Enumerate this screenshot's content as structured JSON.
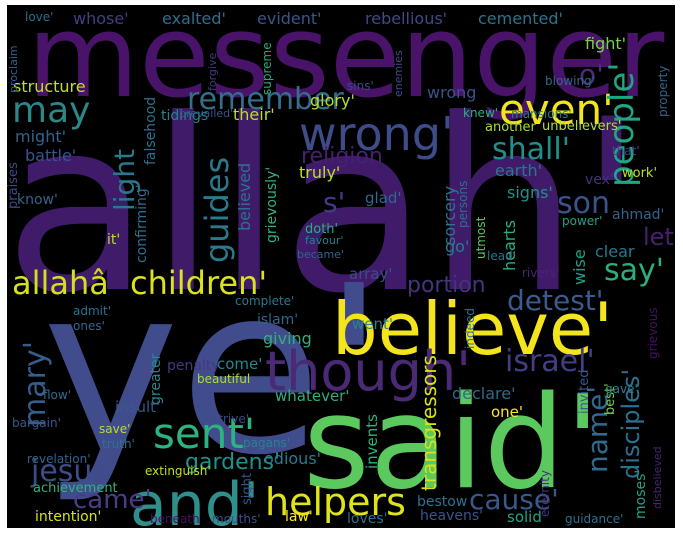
{
  "words": [
    {
      "text": "allah'",
      "color": "#3f1b6a"
    },
    {
      "text": "ye'",
      "color": "#404c8c"
    },
    {
      "text": "messenger'",
      "color": "#49136a"
    },
    {
      "text": "said'",
      "color": "#5cc95f"
    },
    {
      "text": "believe'",
      "color": "#f3e41e"
    },
    {
      "text": "and'",
      "color": "#2f8f8b"
    },
    {
      "text": "though'",
      "color": "#4a2a74"
    },
    {
      "text": "wrong'",
      "color": "#3e4c8a"
    },
    {
      "text": "even'",
      "color": "#f0e51e"
    },
    {
      "text": "sent'",
      "color": "#2db281"
    },
    {
      "text": "helpers",
      "color": "#dfe41a"
    },
    {
      "text": "children'",
      "color": "#dbe21e"
    },
    {
      "text": "allahâ",
      "color": "#d5e01d"
    },
    {
      "text": "may",
      "color": "#2c8789"
    },
    {
      "text": "remember",
      "color": "#356e8b"
    },
    {
      "text": "people'",
      "color": "#21a685"
    },
    {
      "text": "guides",
      "color": "#2b7a8c"
    },
    {
      "text": "israel'",
      "color": "#433d84"
    },
    {
      "text": "detest'",
      "color": "#3a5b8b"
    },
    {
      "text": "mary'",
      "color": "#365d8d"
    },
    {
      "text": "jesus",
      "color": "#3e4c8a"
    },
    {
      "text": "cause'",
      "color": "#38598c"
    },
    {
      "text": "name'",
      "color": "#31688e"
    },
    {
      "text": "disciples'",
      "color": "#2e6f8e"
    },
    {
      "text": "son",
      "color": "#3b528b"
    },
    {
      "text": "shall'",
      "color": "#21908d"
    },
    {
      "text": "came'",
      "color": "#4a3c86"
    },
    {
      "text": "say'",
      "color": "#2ab07f"
    },
    {
      "text": "light",
      "color": "#2a788e"
    },
    {
      "text": "religion",
      "color": "#482071"
    },
    {
      "text": "portion",
      "color": "#46337e"
    },
    {
      "text": "gardens'",
      "color": "#21918c"
    },
    {
      "text": "o'",
      "color": "#4a2e7a"
    },
    {
      "text": "let'",
      "color": "#4b1f6f"
    },
    {
      "text": "s'",
      "color": "#443983"
    },
    {
      "text": "transgressors",
      "color": "#d7e219"
    },
    {
      "text": "believed",
      "color": "#2c728e"
    },
    {
      "text": "fight'",
      "color": "#7ad151"
    },
    {
      "text": "exalted'",
      "color": "#2e6e8e"
    },
    {
      "text": "evident'",
      "color": "#3a548c"
    },
    {
      "text": "rebellious'",
      "color": "#3e4a89"
    },
    {
      "text": "cemented'",
      "color": "#2c738e"
    },
    {
      "text": "whose'",
      "color": "#433e85"
    },
    {
      "text": "love'",
      "color": "#2e6e8e"
    },
    {
      "text": "structure",
      "color": "#c2df23"
    },
    {
      "text": "might'",
      "color": "#33638d"
    },
    {
      "text": "battle'",
      "color": "#39558c"
    },
    {
      "text": "tidings",
      "color": "#25848e"
    },
    {
      "text": "their'",
      "color": "#b8de29"
    },
    {
      "text": "glory'",
      "color": "#b5de2b"
    },
    {
      "text": "truly'",
      "color": "#bddf26"
    },
    {
      "text": "sorcery",
      "color": "#2a788e"
    },
    {
      "text": "hearts",
      "color": "#2ab07f"
    },
    {
      "text": "signs'",
      "color": "#21918c"
    },
    {
      "text": "earth'",
      "color": "#2a768e"
    },
    {
      "text": "clear",
      "color": "#2a788e"
    },
    {
      "text": "ahmad'",
      "color": "#33638d"
    },
    {
      "text": "wise",
      "color": "#1f9e89"
    },
    {
      "text": "wrong",
      "color": "#3b528b"
    },
    {
      "text": "mansions'",
      "color": "#2a788e"
    },
    {
      "text": "knew'",
      "color": "#2ab07f"
    },
    {
      "text": "unbelievers'",
      "color": "#b5de2b"
    },
    {
      "text": "another",
      "color": "#a8db34"
    },
    {
      "text": "work'",
      "color": "#c0df25"
    },
    {
      "text": "that'",
      "color": "#414487"
    },
    {
      "text": "vex'",
      "color": "#46307e"
    },
    {
      "text": "power'",
      "color": "#20a386"
    },
    {
      "text": "go'",
      "color": "#297b8e"
    },
    {
      "text": "utmost",
      "color": "#5ec962"
    },
    {
      "text": "rivers'",
      "color": "#482677"
    },
    {
      "text": "lead'",
      "color": "#2c728e"
    },
    {
      "text": "array'",
      "color": "#3d4d8a"
    },
    {
      "text": "went'",
      "color": "#25858e"
    },
    {
      "text": "islam'",
      "color": "#32658e"
    },
    {
      "text": "giving",
      "color": "#2db27d"
    },
    {
      "text": "complete'",
      "color": "#2a788e"
    },
    {
      "text": "admit'",
      "color": "#2c728e"
    },
    {
      "text": "ones'",
      "color": "#31668e"
    },
    {
      "text": "come'",
      "color": "#23898e"
    },
    {
      "text": "beautiful",
      "color": "#b0dd2f"
    },
    {
      "text": "greater",
      "color": "#23888e"
    },
    {
      "text": "penalty",
      "color": "#453781"
    },
    {
      "text": "flow'",
      "color": "#2f6c8e"
    },
    {
      "text": "insult'",
      "color": "#38598c"
    },
    {
      "text": "whatever'",
      "color": "#2ab07f"
    },
    {
      "text": "odious'",
      "color": "#287c8e"
    },
    {
      "text": "strive'",
      "color": "#3e4989"
    },
    {
      "text": "save'",
      "color": "#b8de29"
    },
    {
      "text": "truth'",
      "color": "#2c718e"
    },
    {
      "text": "pagans'",
      "color": "#26828e"
    },
    {
      "text": "revelation'",
      "color": "#33638d"
    },
    {
      "text": "extinguish'",
      "color": "#c2df23"
    },
    {
      "text": "achievement",
      "color": "#2fb47c"
    },
    {
      "text": "intention'",
      "color": "#d8e219"
    },
    {
      "text": "beneath",
      "color": "#471063"
    },
    {
      "text": "mouths'",
      "color": "#3c508b"
    },
    {
      "text": "law'",
      "color": "#fde725"
    },
    {
      "text": "loves'",
      "color": "#2d708e"
    },
    {
      "text": "heavens'",
      "color": "#3a548c"
    },
    {
      "text": "solid",
      "color": "#21a585"
    },
    {
      "text": "guidance'",
      "color": "#2d708e"
    },
    {
      "text": "bestow",
      "color": "#2c728e"
    },
    {
      "text": "declare'",
      "color": "#31688e"
    },
    {
      "text": "one'",
      "color": "#fde725"
    },
    {
      "text": "invited",
      "color": "#38598c"
    },
    {
      "text": "best'",
      "color": "#7ad151"
    },
    {
      "text": "gave'",
      "color": "#26828e"
    },
    {
      "text": "eternity",
      "color": "#46337e"
    },
    {
      "text": "moses'",
      "color": "#21a685"
    },
    {
      "text": "disbelieved",
      "color": "#482475"
    },
    {
      "text": "grievous",
      "color": "#471365"
    },
    {
      "text": "invents",
      "color": "#2db27d"
    },
    {
      "text": "sight",
      "color": "#3b528b"
    },
    {
      "text": "bargain'",
      "color": "#38598c"
    },
    {
      "text": "know'",
      "color": "#32648e"
    },
    {
      "text": "it'",
      "color": "#b8de29"
    },
    {
      "text": "praises",
      "color": "#3e4989"
    },
    {
      "text": "confirming'",
      "color": "#2e6e8e"
    },
    {
      "text": "grievously'",
      "color": "#2db27d"
    },
    {
      "text": "doth'",
      "color": "#2ab07f"
    },
    {
      "text": "favour'",
      "color": "#26828e"
    },
    {
      "text": "became'",
      "color": "#33638d"
    },
    {
      "text": "glad'",
      "color": "#31688e"
    },
    {
      "text": "persons",
      "color": "#2c728e"
    },
    {
      "text": "indeed",
      "color": "#2c728e"
    },
    {
      "text": "falsehood",
      "color": "#2c728e"
    },
    {
      "text": "prevailed'",
      "color": "#3b528b"
    },
    {
      "text": "forgive",
      "color": "#443983"
    },
    {
      "text": "supreme",
      "color": "#25ab82"
    },
    {
      "text": "sins'",
      "color": "#3e4989"
    },
    {
      "text": "enemies",
      "color": "#3e4c8a"
    },
    {
      "text": "blowing'",
      "color": "#31688e"
    },
    {
      "text": "property",
      "color": "#32648e"
    },
    {
      "text": "proclaim",
      "color": "#32648e"
    }
  ]
}
